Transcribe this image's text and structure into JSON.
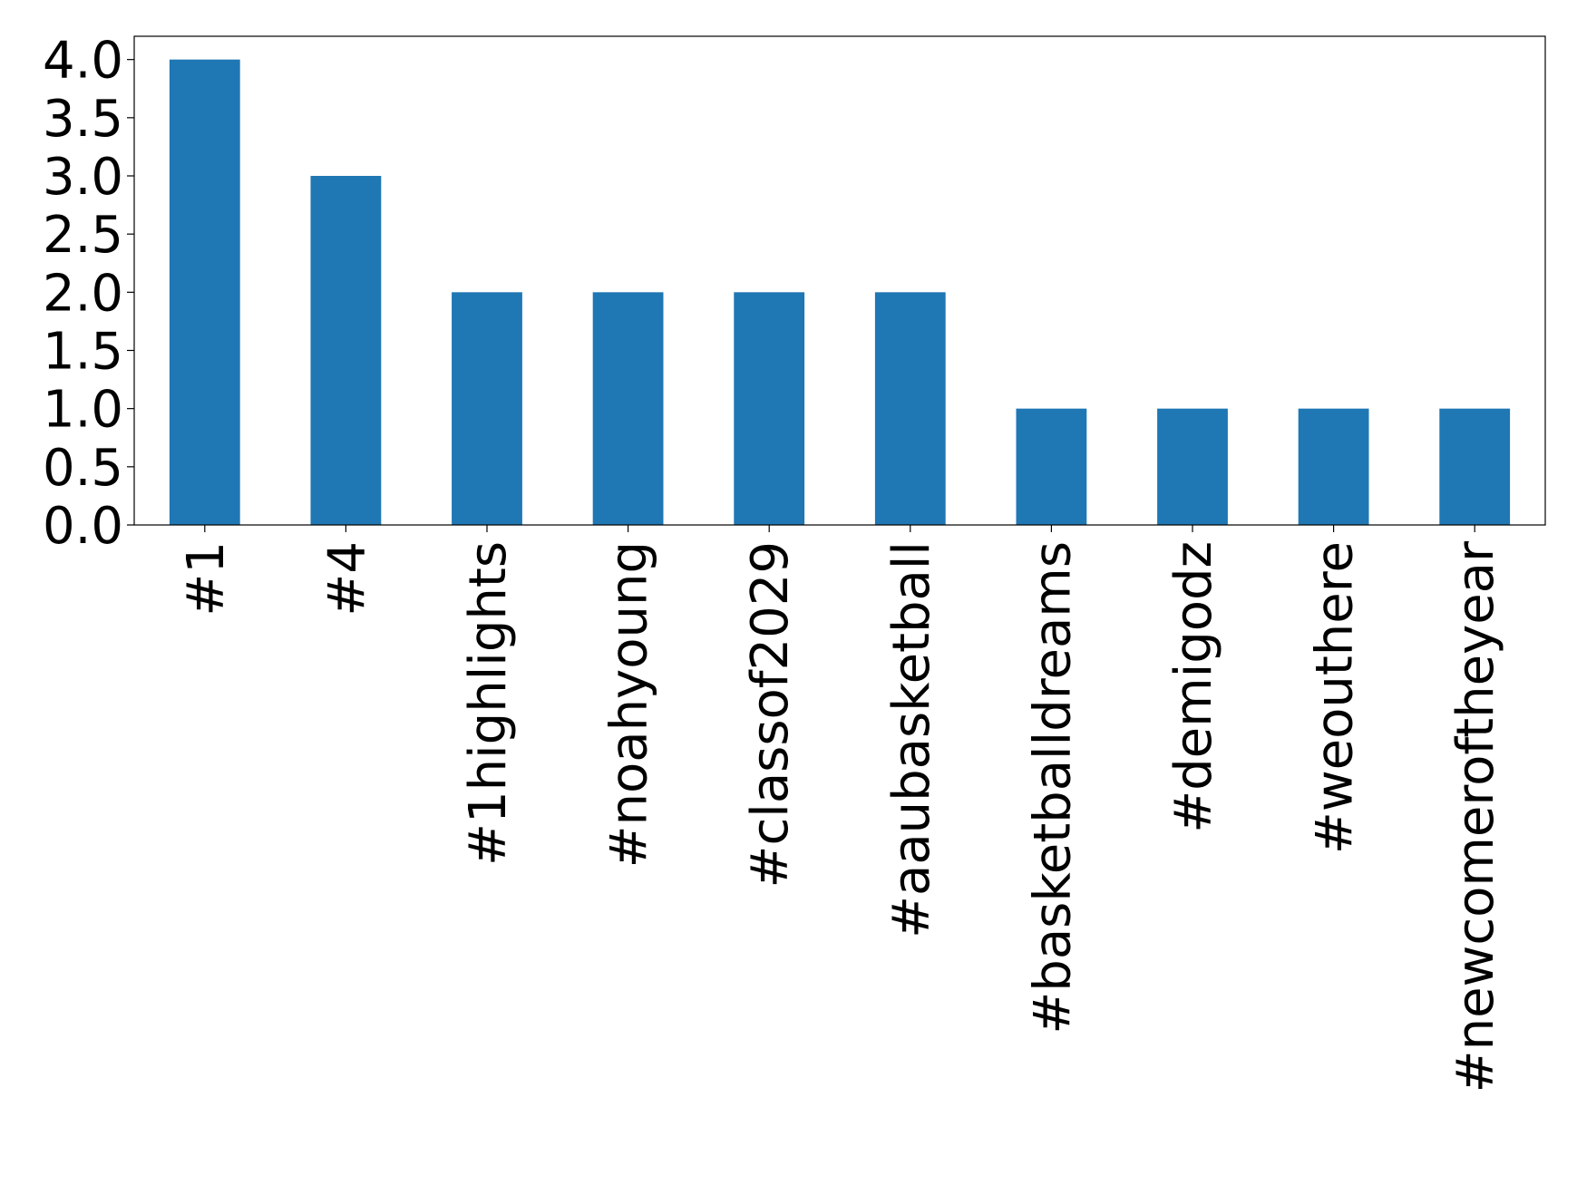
{
  "chart_data": {
    "type": "bar",
    "categories": [
      "#1",
      "#4",
      "#1highlights",
      "#noahyoung",
      "#classof2029",
      "#aaubasketball",
      "#basketballdreams",
      "#demigodz",
      "#weouthere",
      "#newcomeroftheyear"
    ],
    "values": [
      4,
      3,
      2,
      2,
      2,
      2,
      1,
      1,
      1,
      1
    ],
    "color": "#1f77b4",
    "ylim": [
      0,
      4.2
    ],
    "yticks": [
      {
        "value": 0,
        "label": "0.0"
      },
      {
        "value": 0.5,
        "label": "0.5"
      },
      {
        "value": 1,
        "label": "1.0"
      },
      {
        "value": 1.5,
        "label": "1.5"
      },
      {
        "value": 2,
        "label": "2.0"
      },
      {
        "value": 2.5,
        "label": "2.5"
      },
      {
        "value": 3,
        "label": "3.0"
      },
      {
        "value": 3.5,
        "label": "3.5"
      },
      {
        "value": 4,
        "label": "4.0"
      }
    ],
    "grid": false
  }
}
